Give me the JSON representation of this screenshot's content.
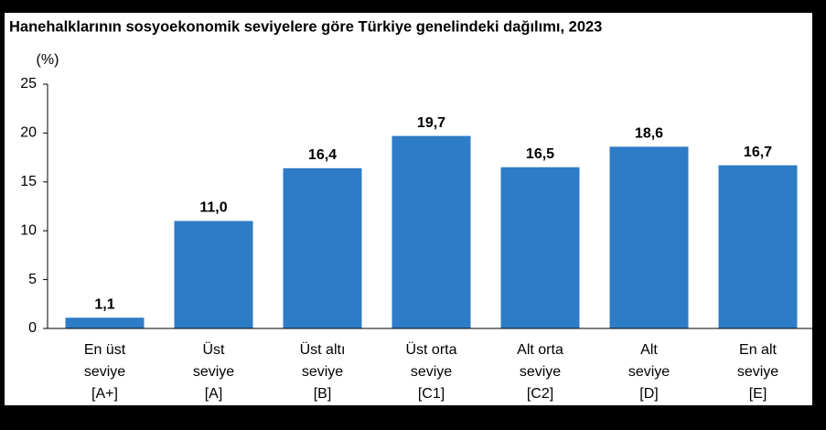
{
  "chart_data": {
    "type": "bar",
    "title": "Hanehalklarının sosyoekonomik seviyelere göre Türkiye genelindeki dağılımı, 2023",
    "ylabel": "(%)",
    "categories": [
      [
        "En üst",
        "seviye",
        "[A+]"
      ],
      [
        "Üst",
        "seviye",
        "[A]"
      ],
      [
        "Üst altı",
        "seviye",
        "[B]"
      ],
      [
        "Üst orta",
        "seviye",
        "[C1]"
      ],
      [
        "Alt orta",
        "seviye",
        "[C2]"
      ],
      [
        "Alt",
        "seviye",
        "[D]"
      ],
      [
        "En alt",
        "seviye",
        "[E]"
      ]
    ],
    "values": [
      1.1,
      11.0,
      16.4,
      19.7,
      16.5,
      18.6,
      16.7
    ],
    "value_labels": [
      "1,1",
      "11,0",
      "16,4",
      "19,7",
      "16,5",
      "18,6",
      "16,7"
    ],
    "color": "#2e7cc6",
    "ylim": [
      0,
      25
    ],
    "yticks": [
      0,
      5,
      10,
      15,
      20,
      25
    ],
    "grid": false
  }
}
